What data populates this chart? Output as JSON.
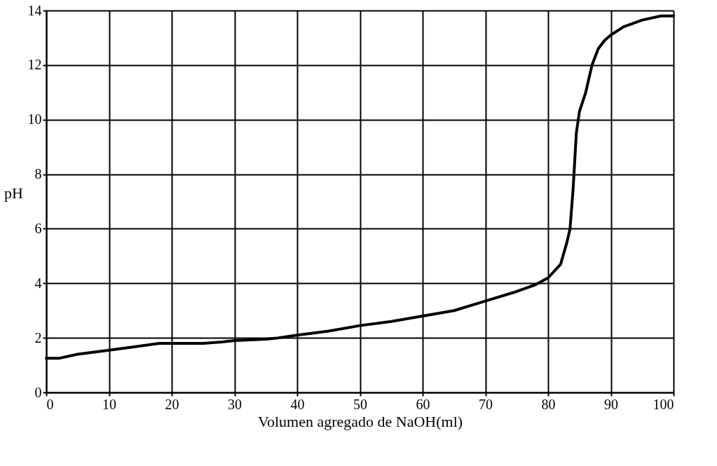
{
  "chart_data": {
    "type": "line",
    "xlabel": "Volumen agregado de NaOH(ml)",
    "ylabel": "pH",
    "x": [
      0,
      2,
      5,
      10,
      15,
      18,
      25,
      28,
      30,
      35,
      37,
      40,
      45,
      50,
      55,
      60,
      65,
      70,
      75,
      78,
      80,
      82,
      83,
      83.5,
      84,
      84.5,
      85,
      86,
      87,
      88,
      89,
      90,
      92,
      95,
      98,
      100
    ],
    "series": [
      {
        "color": "#000000",
        "values": [
          1.25,
          1.25,
          1.4,
          1.55,
          1.7,
          1.8,
          1.8,
          1.85,
          1.9,
          1.95,
          2.0,
          2.1,
          2.25,
          2.45,
          2.6,
          2.8,
          3.0,
          3.35,
          3.7,
          3.95,
          4.2,
          4.7,
          5.5,
          6.0,
          7.5,
          9.5,
          10.3,
          11.0,
          12.0,
          12.6,
          12.9,
          13.1,
          13.4,
          13.65,
          13.8,
          13.8
        ]
      }
    ],
    "xlim": [
      0,
      100
    ],
    "xticks": [
      0,
      10,
      20,
      30,
      40,
      50,
      60,
      70,
      80,
      90,
      100
    ],
    "ylim": [
      0,
      14
    ],
    "yticks": [
      0,
      2,
      4,
      6,
      8,
      10,
      12,
      14
    ],
    "grid": true,
    "marker": "none",
    "line_style": "solid"
  }
}
